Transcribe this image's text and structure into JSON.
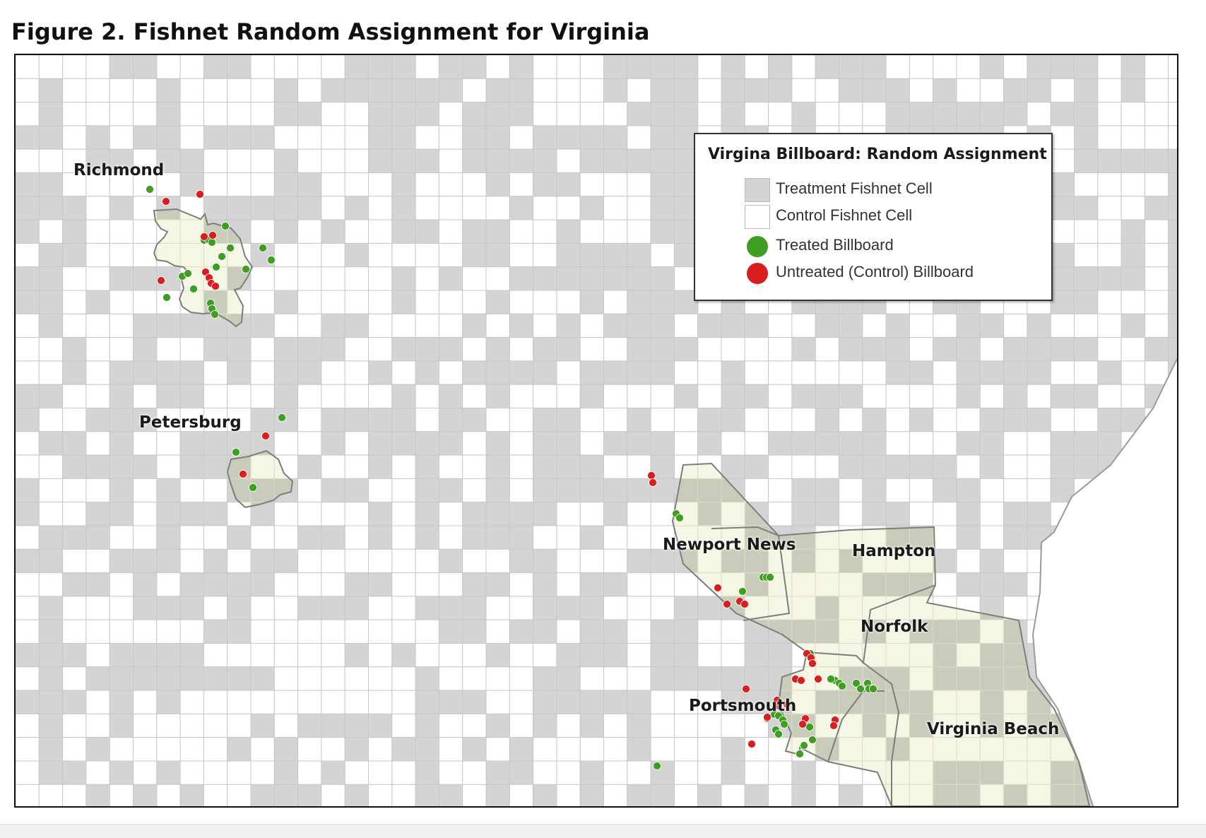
{
  "figure": {
    "title": "Figure 2. Fishnet Random Assignment for Virginia"
  },
  "legend": {
    "title": "Virgina Billboard: Random Assignment",
    "items": [
      {
        "label": "Treatment Fishnet Cell",
        "symbol": "box",
        "color": "#d4d4d4"
      },
      {
        "label": "Control Fishnet Cell",
        "symbol": "box",
        "color": "#ffffff"
      },
      {
        "label": "Treated Billboard",
        "symbol": "dot",
        "color": "#3f9e22"
      },
      {
        "label": "Untreated (Control) Billboard",
        "symbol": "dot",
        "color": "#d81e1e"
      }
    ]
  },
  "cities": [
    {
      "name": "Richmond"
    },
    {
      "name": "Petersburg"
    },
    {
      "name": "Newport News"
    },
    {
      "name": "Hampton"
    },
    {
      "name": "Norfolk"
    },
    {
      "name": "Portsmouth"
    },
    {
      "name": "Virginia Beach"
    }
  ],
  "colors": {
    "treatment_cell": "#d4d4d4",
    "control_cell": "#ffffff",
    "grid_line": "#c8c8c8",
    "city_fill": "#f5f7e4",
    "city_stroke": "#7d7d7d",
    "city_treatment_cell": "#c9ccba",
    "treated_billboard": "#3f9e22",
    "untreated_billboard": "#d81e1e"
  }
}
